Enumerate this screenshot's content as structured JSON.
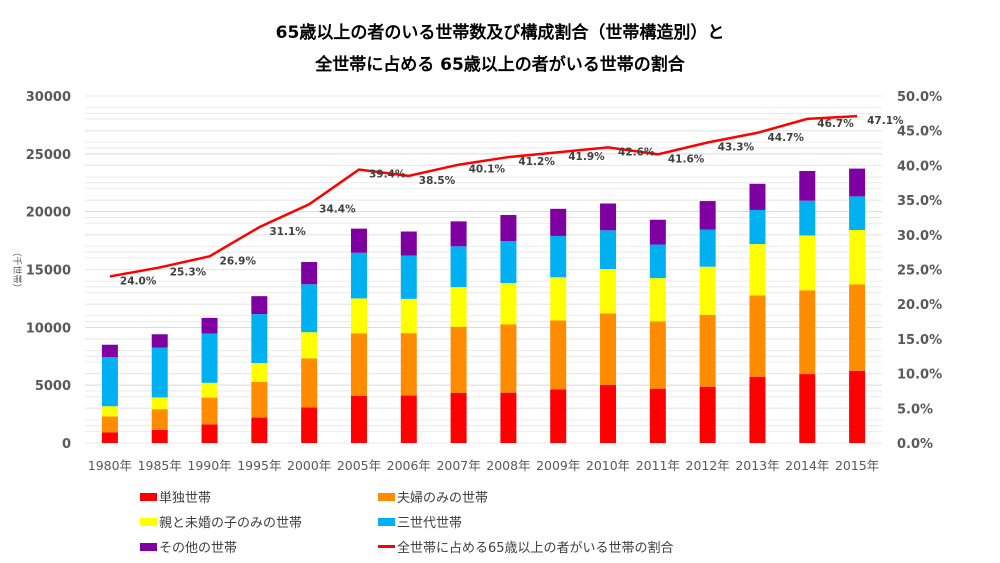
{
  "chart_data": {
    "type": "bar",
    "stacked": true,
    "title": "65歳以上の者のいる世帯数及び構成割合（世帯構造別）と",
    "subtitle": "全世帯に占める 65歳以上の者がいる世帯の割合",
    "ylabel": "（千世帯）",
    "ylim": [
      0,
      30000
    ],
    "yticks": [
      "0",
      "5000",
      "10000",
      "15000",
      "20000",
      "25000",
      "30000"
    ],
    "y2lim": [
      0,
      50
    ],
    "y2ticks": [
      "0.0%",
      "5.0%",
      "10.0%",
      "15.0%",
      "20.0%",
      "25.0%",
      "30.0%",
      "35.0%",
      "40.0%",
      "45.0%",
      "50.0%"
    ],
    "grid": true,
    "legend_position": "bottom",
    "categories": [
      "1980年",
      "1985年",
      "1990年",
      "1995年",
      "2000年",
      "2005年",
      "2006年",
      "2007年",
      "2008年",
      "2009年",
      "2010年",
      "2011年",
      "2012年",
      "2013年",
      "2014年",
      "2015年"
    ],
    "series": [
      {
        "name": "単独世帯",
        "color": "#ff0000",
        "values": [
          910,
          1131,
          1613,
          2199,
          3079,
          4069,
          4102,
          4326,
          4352,
          4627,
          5018,
          4697,
          4869,
          5730,
          5959,
          6243
        ]
      },
      {
        "name": "夫婦のみの世帯",
        "color": "#ff8c00",
        "values": [
          1379,
          1795,
          2314,
          3075,
          4234,
          5420,
          5397,
          5732,
          5907,
          5966,
          6190,
          5817,
          6222,
          7024,
          7242,
          7469
        ]
      },
      {
        "name": "親と未婚の子のみの世帯",
        "color": "#ffff00",
        "values": [
          891,
          1012,
          1275,
          1636,
          2268,
          3010,
          2964,
          3418,
          3574,
          3736,
          3836,
          3743,
          4152,
          4442,
          4743,
          4704
        ]
      },
      {
        "name": "三世代世帯",
        "color": "#00b0f0",
        "values": [
          4254,
          4313,
          4270,
          4232,
          4141,
          3947,
          3751,
          3528,
          3630,
          3573,
          3348,
          2905,
          3199,
          2953,
          3003,
          2906
        ]
      },
      {
        "name": "その他の世帯",
        "color": "#7f00a0",
        "values": [
          1062,
          1150,
          1345,
          1553,
          1924,
          2088,
          2071,
          2156,
          2247,
          2345,
          2313,
          2141,
          2475,
          2261,
          2567,
          2401
        ]
      }
    ],
    "line_series": {
      "name": "全世帯に占める65歳以上の者がいる世帯の割合",
      "color": "#ff0000",
      "axis": "secondary",
      "values": [
        24.0,
        25.3,
        26.9,
        31.1,
        34.4,
        39.4,
        38.5,
        40.1,
        41.2,
        41.9,
        42.6,
        41.6,
        43.3,
        44.7,
        46.7,
        47.1
      ],
      "labels": [
        "24.0%",
        "25.3%",
        "26.9%",
        "31.1%",
        "34.4%",
        "39.4%",
        "38.5%",
        "40.1%",
        "41.2%",
        "41.9%",
        "42.6%",
        "41.6%",
        "43.3%",
        "44.7%",
        "46.7%",
        "47.1%"
      ]
    }
  }
}
